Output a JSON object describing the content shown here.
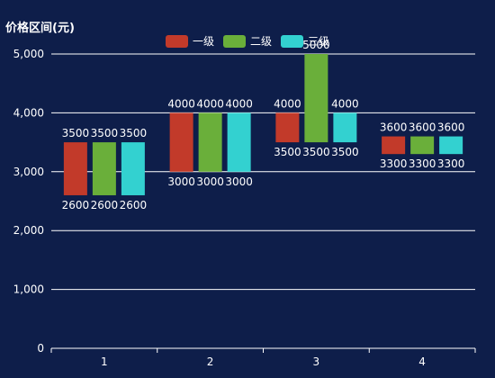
{
  "chart_data": {
    "type": "bar",
    "ylabel": "价格区间(元)",
    "categories": [
      "1",
      "2",
      "3",
      "4"
    ],
    "ylim": [
      0,
      5000
    ],
    "yticks": [
      "0",
      "1,000",
      "2,000",
      "3,000",
      "4,000",
      "5,000"
    ],
    "grid": true,
    "legend_position": "top",
    "series": [
      {
        "name": "一级",
        "color": "#c23a2a",
        "low": [
          2600,
          3000,
          3500,
          3300
        ],
        "high": [
          3500,
          4000,
          4000,
          3600
        ]
      },
      {
        "name": "二级",
        "color": "#6aaf3a",
        "low": [
          2600,
          3000,
          3500,
          3300
        ],
        "high": [
          3500,
          4000,
          5000,
          3600
        ]
      },
      {
        "name": "三级",
        "color": "#33d1d0",
        "low": [
          2600,
          3000,
          3500,
          3300
        ],
        "high": [
          3500,
          4000,
          4000,
          3600
        ]
      }
    ],
    "high_labels": [
      [
        "3500",
        "3500",
        "3500"
      ],
      [
        "4000",
        "4000",
        "4000"
      ],
      [
        "4000",
        "5000",
        "4000"
      ],
      [
        "3600",
        "3600",
        "3600"
      ]
    ],
    "low_labels": [
      [
        "2600",
        "2600",
        "2600"
      ],
      [
        "3000",
        "3000",
        "3000"
      ],
      [
        "3500",
        "3500",
        "3500"
      ],
      [
        "3300",
        "3300",
        "3300"
      ]
    ]
  }
}
